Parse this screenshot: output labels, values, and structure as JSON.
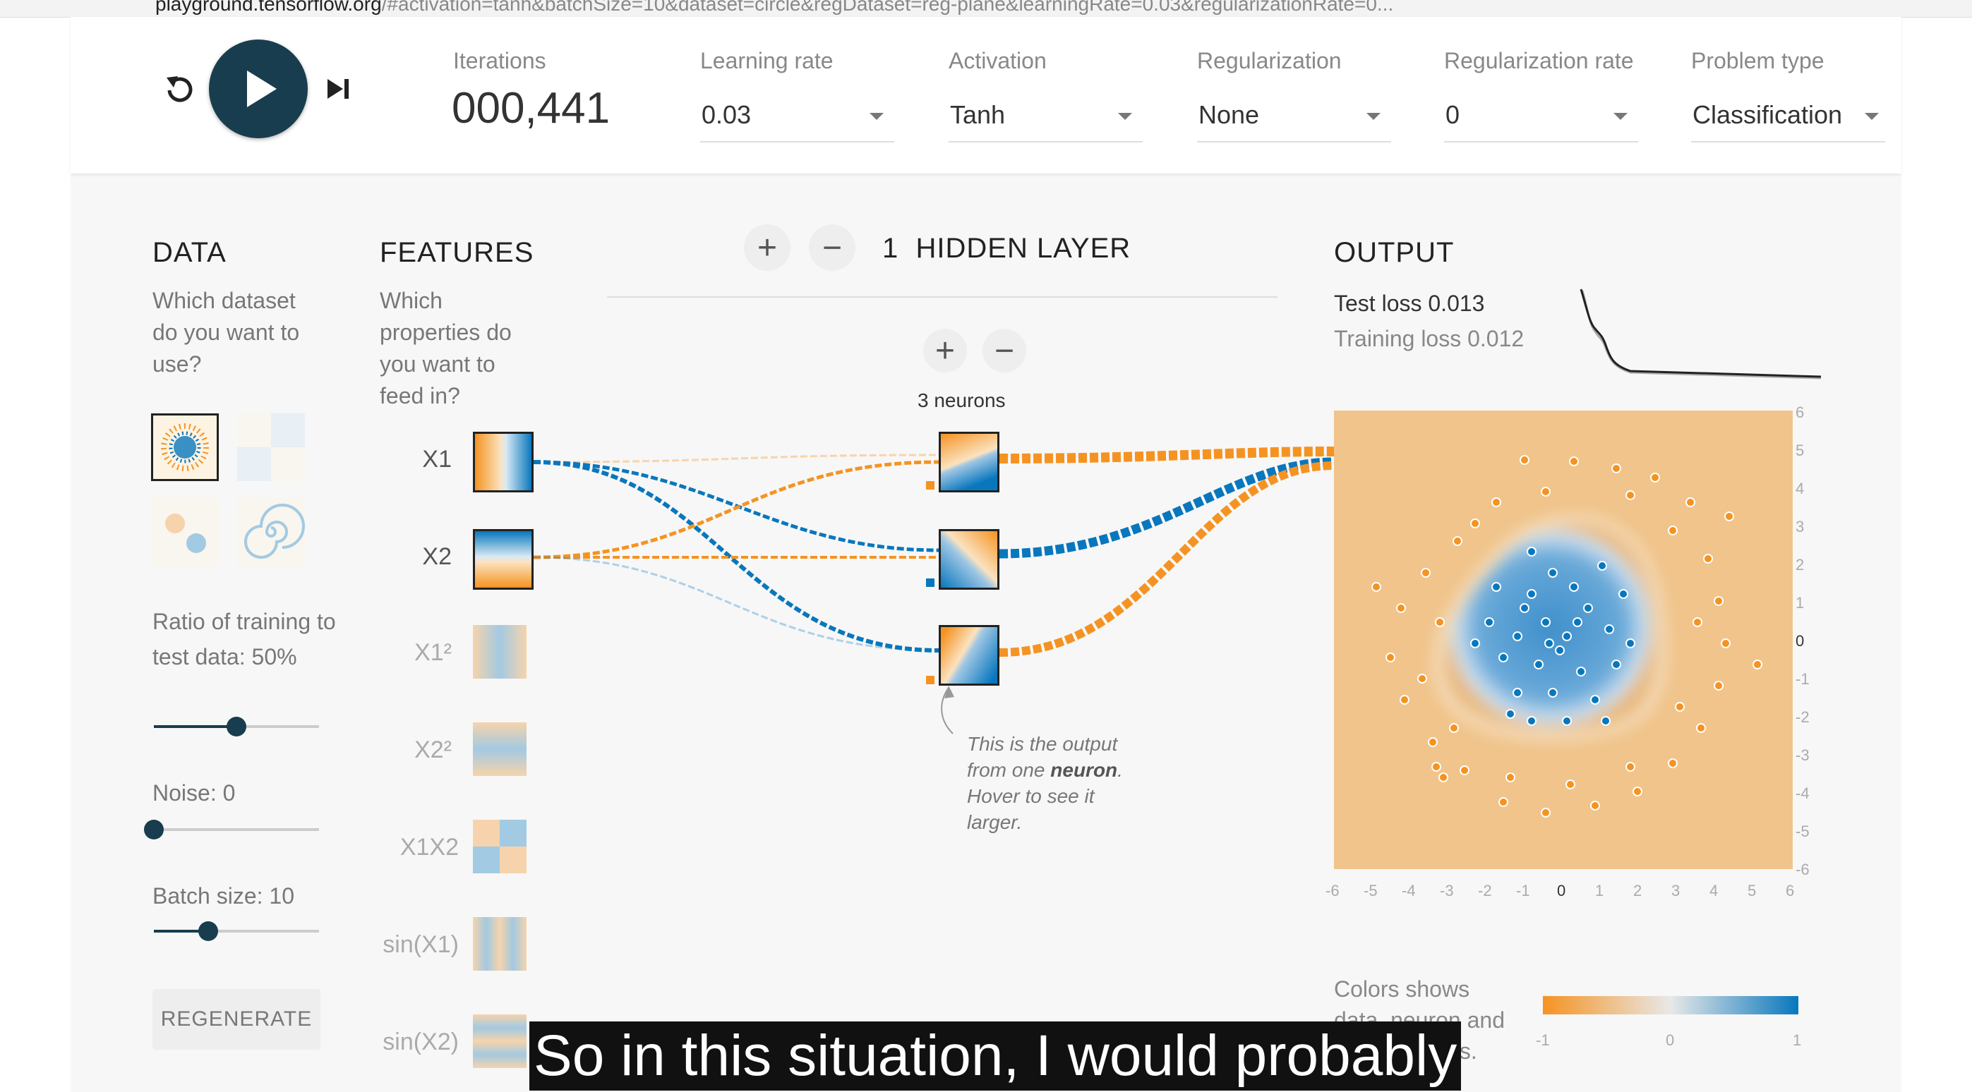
{
  "browser": {
    "url_host": "playground.tensorflow.org",
    "url_rest": "/#activation=tanh&batchSize=10&dataset=circle&regDataset=reg-plane&learningRate=0.03&regularizationRate=0..."
  },
  "topbar": {
    "iterations": {
      "label": "Iterations",
      "value": "000,441"
    },
    "learning_rate": {
      "label": "Learning rate",
      "value": "0.03"
    },
    "activation": {
      "label": "Activation",
      "value": "Tanh"
    },
    "regularization": {
      "label": "Regularization",
      "value": "None"
    },
    "regularization_rate": {
      "label": "Regularization rate",
      "value": "0"
    },
    "problem_type": {
      "label": "Problem type",
      "value": "Classification"
    }
  },
  "data_panel": {
    "title": "DATA",
    "description": "Which dataset do you want to use?",
    "ratio": {
      "label": "Ratio of training to test data:",
      "value": "50%",
      "level": 0.5
    },
    "noise": {
      "label": "Noise:",
      "value": "0",
      "level": 0.0
    },
    "batch": {
      "label": "Batch size:",
      "value": "10",
      "level": 0.33
    },
    "regenerate_label": "REGENERATE"
  },
  "features_panel": {
    "title": "FEATURES",
    "description": "Which properties do you want to feed in?",
    "features": [
      {
        "label": "X1",
        "active": true
      },
      {
        "label": "X2",
        "active": true
      },
      {
        "label": "X1²",
        "active": false
      },
      {
        "label": "X2²",
        "active": false
      },
      {
        "label": "X1X2",
        "active": false
      },
      {
        "label": "sin(X1)",
        "active": false
      },
      {
        "label": "sin(X2)",
        "active": false
      }
    ]
  },
  "network": {
    "layer_count": "1",
    "layers_label": "HIDDEN LAYER",
    "neurons_label": "3 neurons",
    "plus": "+",
    "minus": "−",
    "note_prefix": "This is the output from one",
    "note_bold": "neuron",
    "note_suffix": ". Hover to see it larger."
  },
  "output_panel": {
    "title": "OUTPUT",
    "test_loss": "Test loss 0.013",
    "training_loss": "Training loss 0.012",
    "axis_ticks": [
      "-6",
      "-5",
      "-4",
      "-3",
      "-2",
      "-1",
      "0",
      "1",
      "2",
      "3",
      "4",
      "5",
      "6"
    ],
    "legend_text": "Colors shows data, neuron and weight values.",
    "legend_ticks": [
      "-1",
      "0",
      "1"
    ]
  },
  "colors": {
    "orange": "#f59322",
    "blue": "#0877bd",
    "dark_button": "#183d4e"
  },
  "caption": "So in this situation, I would probably"
}
